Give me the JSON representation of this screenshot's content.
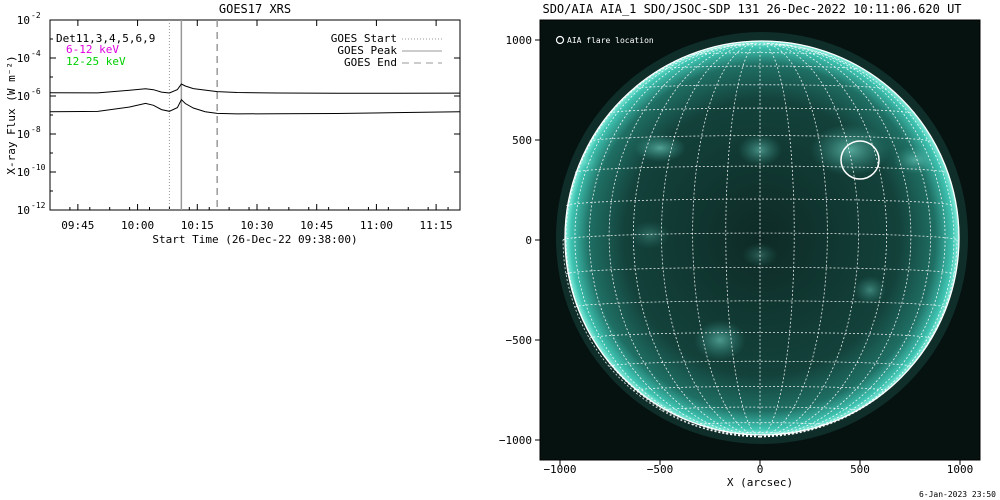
{
  "chart_data": [
    {
      "type": "line",
      "title": "GOES17 XRS",
      "xlabel": "Start Time (26-Dec-22 09:38:00)",
      "ylabel": "X-ray Flux (W m⁻²)",
      "y_scale": "log",
      "ylim_exponents": [
        -12,
        -2
      ],
      "y_tick_labels": [
        {
          "base": "10",
          "exp": "-2"
        },
        {
          "base": "10",
          "exp": "-4"
        },
        {
          "base": "10",
          "exp": "-6"
        },
        {
          "base": "10",
          "exp": "-8"
        },
        {
          "base": "10",
          "exp": "-10"
        },
        {
          "base": "10",
          "exp": "-12"
        }
      ],
      "x_tick_labels": [
        "09:45",
        "10:00",
        "10:15",
        "10:30",
        "10:45",
        "11:00",
        "11:15"
      ],
      "xlim_hours": [
        "09:38",
        "11:21"
      ],
      "detector_label": "Det11,3,4,5,6,9",
      "channels": [
        {
          "name": "6-12 keV",
          "color": "#e000e0"
        },
        {
          "name": "12-25 keV",
          "color": "#00d000"
        }
      ],
      "legend": [
        {
          "name": "GOES Start",
          "style": "dotted"
        },
        {
          "name": "GOES Peak",
          "style": "solid"
        },
        {
          "name": "GOES End",
          "style": "dashed"
        }
      ],
      "events": {
        "start": "10:08",
        "peak": "10:11",
        "end": "10:20"
      },
      "series": [
        {
          "name": "upper",
          "x": [
            "09:38",
            "09:50",
            "09:58",
            "10:02",
            "10:04",
            "10:06",
            "10:08",
            "10:10",
            "10:11",
            "10:12",
            "10:14",
            "10:17",
            "10:20",
            "10:25",
            "10:35",
            "10:50",
            "11:05",
            "11:21"
          ],
          "y": [
            1.5e-06,
            1.5e-06,
            2.1e-06,
            2.6e-06,
            2.3e-06,
            1.7e-06,
            1.5e-06,
            2.2e-06,
            4.2e-06,
            3.2e-06,
            2.3e-06,
            1.9e-06,
            1.6e-06,
            1.45e-06,
            1.4e-06,
            1.4e-06,
            1.45e-06,
            1.5e-06
          ]
        },
        {
          "name": "lower",
          "x": [
            "09:38",
            "09:50",
            "09:58",
            "10:02",
            "10:04",
            "10:06",
            "10:08",
            "10:10",
            "10:11",
            "10:12",
            "10:14",
            "10:17",
            "10:20",
            "10:25",
            "10:35",
            "10:50",
            "11:05",
            "11:21"
          ],
          "y": [
            1.5e-07,
            1.5e-07,
            2.5e-07,
            3.8e-07,
            3e-07,
            1.8e-07,
            1.5e-07,
            2.4e-07,
            6.5e-07,
            4.2e-07,
            2.5e-07,
            1.6e-07,
            1.3e-07,
            1.2e-07,
            1.2e-07,
            1.2e-07,
            1.3e-07,
            1.4e-07
          ]
        }
      ]
    },
    {
      "type": "image",
      "title": "SDO/AIA AIA_1 SDO/JSOC-SDP 131 26-Dec-2022 10:11:06.620 UT",
      "annotation": "AIA flare location",
      "xlabel": "X (arcsec)",
      "ylabel": "",
      "x_tick_labels": [
        "−1000",
        "−500",
        "0",
        "500",
        "1000"
      ],
      "y_tick_labels": [
        "1000",
        "500",
        "0",
        "−500",
        "−1000"
      ],
      "xlim": [
        -1100,
        1100
      ],
      "ylim": [
        -1100,
        1100
      ],
      "grid": true,
      "flare_location": {
        "x": 500,
        "y": 400
      },
      "disk_color": "#2fb8a8"
    }
  ],
  "footer": {
    "timestamp": "6-Jan-2023 23:50"
  }
}
